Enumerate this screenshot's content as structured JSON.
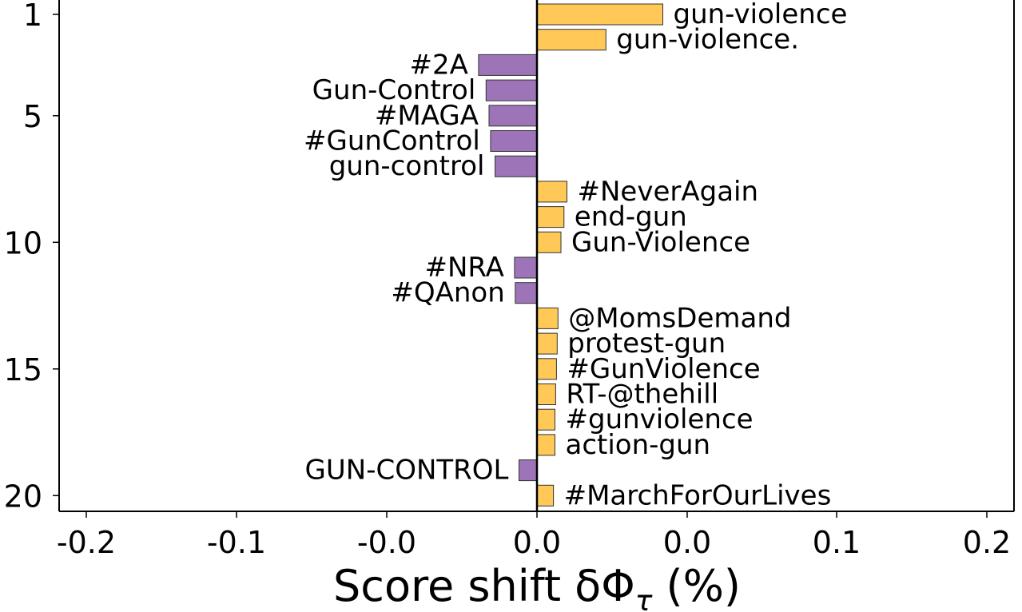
{
  "chart_data": {
    "type": "bar",
    "orientation": "horizontal",
    "xlabel": "Score shift δΦ",
    "xlabel_subscript": "τ",
    "xlabel_suffix": " (%)",
    "ylabel": "",
    "title": "",
    "xlim": [
      -0.22,
      0.22
    ],
    "ylim": [
      0.5,
      20.5
    ],
    "x_ticks": [
      -0.2,
      -0.1,
      -0.05,
      0.0,
      0.05,
      0.1,
      0.2
    ],
    "x_tick_labels": [
      "-0.2",
      "-0.1",
      "-0.0",
      "0.0",
      "0.0",
      "0.1",
      "0.2"
    ],
    "y_ticks": [
      1,
      5,
      10,
      15,
      20
    ],
    "y_tick_labels": [
      "1",
      "5",
      "10",
      "15",
      "20"
    ],
    "grid": false,
    "colors": {
      "positive": "#FFC857",
      "negative": "#9E74B8",
      "axis": "#000000"
    },
    "bars": [
      {
        "rank": 1,
        "label": "gun-violence",
        "value": 0.084
      },
      {
        "rank": 2,
        "label": "gun-violence.",
        "value": 0.046
      },
      {
        "rank": 3,
        "label": "#2A",
        "value": -0.039
      },
      {
        "rank": 4,
        "label": "Gun-Control",
        "value": -0.034
      },
      {
        "rank": 5,
        "label": "#MAGA",
        "value": -0.032
      },
      {
        "rank": 6,
        "label": "#GunControl",
        "value": -0.031
      },
      {
        "rank": 7,
        "label": "gun-control",
        "value": -0.028
      },
      {
        "rank": 8,
        "label": "#NeverAgain",
        "value": 0.02
      },
      {
        "rank": 9,
        "label": "end-gun",
        "value": 0.018
      },
      {
        "rank": 10,
        "label": "Gun-Violence",
        "value": 0.016
      },
      {
        "rank": 11,
        "label": "#NRA",
        "value": -0.015
      },
      {
        "rank": 12,
        "label": "#QAnon",
        "value": -0.0145
      },
      {
        "rank": 13,
        "label": "@MomsDemand",
        "value": 0.014
      },
      {
        "rank": 14,
        "label": "protest-gun",
        "value": 0.0135
      },
      {
        "rank": 15,
        "label": "#GunViolence",
        "value": 0.013
      },
      {
        "rank": 16,
        "label": "RT-@thehill",
        "value": 0.0125
      },
      {
        "rank": 17,
        "label": "#gunviolence",
        "value": 0.012
      },
      {
        "rank": 18,
        "label": "action-gun",
        "value": 0.012
      },
      {
        "rank": 19,
        "label": "GUN-CONTROL",
        "value": -0.012
      },
      {
        "rank": 20,
        "label": "#MarchForOurLives",
        "value": 0.011
      }
    ]
  }
}
